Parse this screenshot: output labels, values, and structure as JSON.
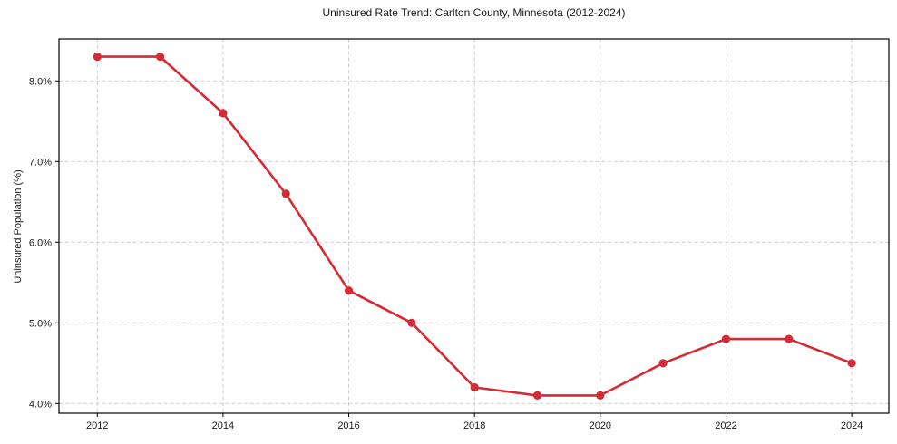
{
  "figure": {
    "background": "#ffffff"
  },
  "chart_data": {
    "type": "line",
    "title": "Uninsured Rate Trend: Carlton County, Minnesota (2012-2024)",
    "xlabel": "",
    "ylabel": "Uninsured Population (%)",
    "x": [
      2012,
      2013,
      2014,
      2015,
      2016,
      2017,
      2018,
      2019,
      2020,
      2021,
      2022,
      2023,
      2024
    ],
    "values": [
      8.3,
      8.3,
      7.6,
      6.6,
      5.4,
      5.0,
      4.2,
      4.1,
      4.1,
      4.5,
      4.8,
      4.8,
      4.5
    ],
    "xticks": {
      "values": [
        2012,
        2014,
        2016,
        2018,
        2020,
        2022,
        2024
      ],
      "labels": [
        "2012",
        "2014",
        "2016",
        "2018",
        "2020",
        "2022",
        "2024"
      ]
    },
    "yticks": {
      "values": [
        4.0,
        5.0,
        6.0,
        7.0,
        8.0
      ],
      "labels": [
        "4.0%",
        "5.0%",
        "6.0%",
        "7.0%",
        "8.0%"
      ]
    },
    "xlim": [
      2011.39,
      2024.59
    ],
    "ylim": [
      3.88,
      8.52
    ],
    "grid": true,
    "grid_style": "dashed",
    "legend_position": "none",
    "line_color": "#d42b34",
    "marker": "circle",
    "marker_color": "#d42b34",
    "grid_color": "#c9c9c9",
    "axis_color": "#000000",
    "text_color": "#1a1a1a"
  }
}
